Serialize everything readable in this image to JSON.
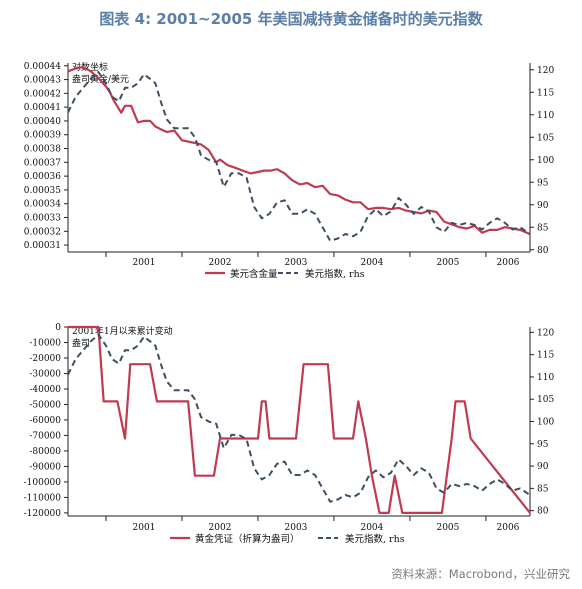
{
  "title": "图表 4:  2001~2005 年美国减持黄金储备时的美元指数",
  "source": "资料来源：Macrobond，兴业研究",
  "colors": {
    "title": "#5b7fa6",
    "red": "#c03a50",
    "dash": "#3d4f63",
    "axis": "#222222"
  },
  "chart_data": [
    {
      "type": "line",
      "annotation": "对数坐标 盎司黄金/美元",
      "x_tick_labels": [
        "2001",
        "2002",
        "2003",
        "2004",
        "2005",
        "2006"
      ],
      "x_range": [
        2000.5,
        2006.58
      ],
      "y_left": {
        "ylim": [
          0.000305,
          0.000442
        ],
        "ticks": [
          0.00031,
          0.00032,
          0.00033,
          0.00034,
          0.00035,
          0.00036,
          0.00037,
          0.00038,
          0.00039,
          0.0004,
          0.00041,
          0.00042,
          0.00043,
          0.00044
        ],
        "tick_labels": [
          "0.00031",
          "0.00032",
          "0.00033",
          "0.00034",
          "0.00035",
          "0.00036",
          "0.00037",
          "0.00038",
          "0.00039",
          "0.00040",
          "0.00041",
          "0.00042",
          "0.00043",
          "0.00044"
        ]
      },
      "y_right": {
        "ylim": [
          79.5,
          121.5
        ],
        "ticks": [
          80,
          85,
          90,
          95,
          100,
          105,
          110,
          115,
          120
        ],
        "tick_labels": [
          "80",
          "85",
          "90",
          "95",
          "100",
          "105",
          "110",
          "115",
          "120"
        ]
      },
      "series": [
        {
          "name": "美元含金量",
          "axis": "left",
          "style": "solid",
          "x": [
            2000.5,
            2000.6,
            2000.7,
            2000.8,
            2000.9,
            2001.0,
            2001.05,
            2001.1,
            2001.2,
            2001.25,
            2001.33,
            2001.42,
            2001.5,
            2001.58,
            2001.65,
            2001.72,
            2001.8,
            2001.9,
            2002.0,
            2002.08,
            2002.17,
            2002.25,
            2002.35,
            2002.45,
            2002.5,
            2002.6,
            2002.7,
            2002.8,
            2002.9,
            2003.0,
            2003.08,
            2003.17,
            2003.25,
            2003.35,
            2003.45,
            2003.55,
            2003.65,
            2003.75,
            2003.85,
            2003.95,
            2004.05,
            2004.15,
            2004.25,
            2004.35,
            2004.45,
            2004.55,
            2004.65,
            2004.75,
            2004.85,
            2004.95,
            2005.05,
            2005.15,
            2005.25,
            2005.35,
            2005.45,
            2005.55,
            2005.65,
            2005.75,
            2005.85,
            2005.95,
            2006.05,
            2006.15,
            2006.25,
            2006.35,
            2006.45,
            2006.58
          ],
          "y": [
            0.000436,
            0.000438,
            0.000439,
            0.000436,
            0.000431,
            0.000425,
            0.000421,
            0.000415,
            0.000406,
            0.000411,
            0.000411,
            0.000399,
            0.0004,
            0.0004,
            0.000396,
            0.000394,
            0.000392,
            0.000393,
            0.000386,
            0.000385,
            0.000384,
            0.000383,
            0.000379,
            0.00037,
            0.000372,
            0.000368,
            0.000366,
            0.000364,
            0.000362,
            0.000363,
            0.000364,
            0.000364,
            0.000365,
            0.000362,
            0.000357,
            0.000354,
            0.000355,
            0.000352,
            0.000353,
            0.000347,
            0.000346,
            0.000343,
            0.000341,
            0.000341,
            0.000336,
            0.000337,
            0.000337,
            0.000336,
            0.000337,
            0.000335,
            0.000334,
            0.000333,
            0.000335,
            0.000334,
            0.000327,
            0.000325,
            0.000323,
            0.000322,
            0.000324,
            0.000319,
            0.000321,
            0.000321,
            0.000323,
            0.000322,
            0.000321,
            0.000318
          ]
        },
        {
          "name": "美元指数, rhs",
          "axis": "right",
          "style": "dashed",
          "x": [
            2000.5,
            2000.6,
            2000.7,
            2000.8,
            2000.9,
            2001.0,
            2001.08,
            2001.17,
            2001.25,
            2001.33,
            2001.42,
            2001.5,
            2001.58,
            2001.65,
            2001.72,
            2001.8,
            2001.9,
            2002.0,
            2002.08,
            2002.17,
            2002.25,
            2002.35,
            2002.45,
            2002.55,
            2002.65,
            2002.75,
            2002.85,
            2002.95,
            2003.05,
            2003.15,
            2003.25,
            2003.35,
            2003.45,
            2003.55,
            2003.65,
            2003.75,
            2003.85,
            2003.95,
            2004.05,
            2004.15,
            2004.25,
            2004.35,
            2004.45,
            2004.55,
            2004.65,
            2004.75,
            2004.85,
            2004.95,
            2005.05,
            2005.15,
            2005.25,
            2005.35,
            2005.45,
            2005.55,
            2005.65,
            2005.75,
            2005.85,
            2005.95,
            2006.05,
            2006.15,
            2006.25,
            2006.35,
            2006.45,
            2006.58
          ],
          "y": [
            110.5,
            114,
            116,
            118,
            119.5,
            117,
            114,
            113,
            116,
            116,
            117,
            119,
            118,
            117,
            113,
            109,
            107,
            107,
            107,
            105,
            101,
            100,
            99.5,
            94,
            97,
            97,
            96,
            89.5,
            87,
            88,
            90.5,
            91,
            88,
            88,
            89,
            88,
            85,
            82,
            82.5,
            83.5,
            83,
            84,
            87.5,
            89,
            87.5,
            88.5,
            91.5,
            90,
            88,
            89.5,
            88.5,
            85,
            84,
            86,
            85.5,
            86,
            85.5,
            84.5,
            86,
            87,
            86,
            84.5,
            85,
            83.5
          ]
        }
      ],
      "legend": [
        {
          "label": "美元含金量",
          "style": "solid"
        },
        {
          "label": "美元指数, rhs",
          "style": "dashed"
        }
      ]
    },
    {
      "type": "line",
      "annotation": "2001年1月以来累计变动 盎司",
      "x_tick_labels": [
        "2001",
        "2002",
        "2003",
        "2004",
        "2005",
        "2006"
      ],
      "x_range": [
        2000.5,
        2006.58
      ],
      "y_left": {
        "ylim": [
          -122000,
          0
        ],
        "ticks": [
          0,
          -10000,
          -20000,
          -30000,
          -40000,
          -50000,
          -60000,
          -70000,
          -80000,
          -90000,
          -100000,
          -110000,
          -120000
        ],
        "tick_labels": [
          "0",
          "-10000",
          "-20000",
          "-30000",
          "-40000",
          "-50000",
          "-60000",
          "-70000",
          "-80000",
          "-90000",
          "-100000",
          "-110000",
          "-120000"
        ]
      },
      "y_right": {
        "ylim": [
          78.8,
          121.2
        ],
        "ticks": [
          80,
          85,
          90,
          95,
          100,
          105,
          110,
          115,
          120
        ],
        "tick_labels": [
          "80",
          "85",
          "90",
          "95",
          "100",
          "105",
          "110",
          "115",
          "120"
        ]
      },
      "series": [
        {
          "name": "黄金凭证（折算为盎司）",
          "axis": "left",
          "style": "solid",
          "x": [
            2000.5,
            2000.9,
            2000.97,
            2001.15,
            2001.25,
            2001.32,
            2001.58,
            2001.67,
            2002.08,
            2002.17,
            2002.42,
            2002.5,
            2003.0,
            2003.05,
            2003.1,
            2003.15,
            2003.2,
            2003.5,
            2003.6,
            2003.92,
            2004.0,
            2004.25,
            2004.32,
            2004.42,
            2004.5,
            2004.6,
            2004.72,
            2004.8,
            2004.9,
            2004.93,
            2005.0,
            2005.42,
            2005.55,
            2005.6,
            2005.72,
            2005.8,
            2006.58
          ],
          "y": [
            0,
            0,
            -48000,
            -48000,
            -72000,
            -24000,
            -24000,
            -48000,
            -48000,
            -96000,
            -96000,
            -72000,
            -72000,
            -48000,
            -48000,
            -72000,
            -72000,
            -72000,
            -24000,
            -24000,
            -72000,
            -72000,
            -48000,
            -72000,
            -96000,
            -120000,
            -120000,
            -96000,
            -120000,
            -120000,
            -120000,
            -120000,
            -72000,
            -48000,
            -48000,
            -72000,
            -120000
          ]
        },
        {
          "name": "美元指数, rhs",
          "axis": "right",
          "style": "dashed",
          "x": [
            2000.5,
            2000.6,
            2000.7,
            2000.8,
            2000.9,
            2001.0,
            2001.08,
            2001.17,
            2001.25,
            2001.33,
            2001.42,
            2001.5,
            2001.58,
            2001.65,
            2001.72,
            2001.8,
            2001.9,
            2002.0,
            2002.08,
            2002.17,
            2002.25,
            2002.35,
            2002.45,
            2002.55,
            2002.65,
            2002.75,
            2002.85,
            2002.95,
            2003.05,
            2003.15,
            2003.25,
            2003.35,
            2003.45,
            2003.55,
            2003.65,
            2003.75,
            2003.85,
            2003.95,
            2004.05,
            2004.15,
            2004.25,
            2004.35,
            2004.45,
            2004.55,
            2004.65,
            2004.75,
            2004.85,
            2004.95,
            2005.05,
            2005.15,
            2005.25,
            2005.35,
            2005.45,
            2005.55,
            2005.65,
            2005.75,
            2005.85,
            2005.95,
            2006.05,
            2006.15,
            2006.25,
            2006.35,
            2006.45,
            2006.58
          ],
          "y": [
            110.5,
            114,
            116,
            118,
            119.5,
            117,
            114,
            113,
            116,
            116,
            117,
            119,
            118,
            117,
            113,
            109,
            107,
            107,
            107,
            105,
            101,
            100,
            99.5,
            94,
            97,
            97,
            96,
            89.5,
            87,
            88,
            90.5,
            91,
            88,
            88,
            89,
            88,
            85,
            82,
            82.5,
            83.5,
            83,
            84,
            87.5,
            89,
            87.5,
            88.5,
            91.5,
            90,
            88,
            89.5,
            88.5,
            85,
            84,
            86,
            85.5,
            86,
            85.5,
            84.5,
            86,
            87,
            86,
            84.5,
            85,
            83.5
          ]
        }
      ],
      "legend": [
        {
          "label": "黄金凭证（折算为盎司）",
          "style": "solid"
        },
        {
          "label": "美元指数, rhs",
          "style": "dashed"
        }
      ]
    }
  ]
}
